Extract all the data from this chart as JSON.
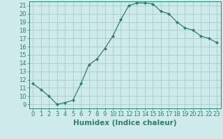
{
  "x": [
    0,
    1,
    2,
    3,
    4,
    5,
    6,
    7,
    8,
    9,
    10,
    11,
    12,
    13,
    14,
    15,
    16,
    17,
    18,
    19,
    20,
    21,
    22,
    23
  ],
  "y": [
    11.5,
    10.8,
    10.0,
    9.0,
    9.2,
    9.5,
    11.5,
    13.8,
    14.5,
    15.8,
    17.3,
    19.3,
    21.0,
    21.3,
    21.3,
    21.2,
    20.3,
    20.0,
    19.0,
    18.3,
    18.0,
    17.3,
    17.0,
    16.5
  ],
  "line_color": "#2e7d6e",
  "marker": "D",
  "marker_size": 2,
  "bg_color": "#ceeaea",
  "grid_color": "#aed0d0",
  "xlabel": "Humidex (Indice chaleur)",
  "ylim": [
    8.5,
    21.5
  ],
  "xlim": [
    -0.5,
    23.5
  ],
  "yticks": [
    9,
    10,
    11,
    12,
    13,
    14,
    15,
    16,
    17,
    18,
    19,
    20,
    21
  ],
  "xticks": [
    0,
    1,
    2,
    3,
    4,
    5,
    6,
    7,
    8,
    9,
    10,
    11,
    12,
    13,
    14,
    15,
    16,
    17,
    18,
    19,
    20,
    21,
    22,
    23
  ],
  "xtick_labels": [
    "0",
    "1",
    "2",
    "3",
    "4",
    "5",
    "6",
    "7",
    "8",
    "9",
    "10",
    "11",
    "12",
    "13",
    "14",
    "15",
    "16",
    "17",
    "18",
    "19",
    "20",
    "21",
    "22",
    "23"
  ],
  "tick_color": "#2e7d6e",
  "label_fontsize": 7.5,
  "tick_fontsize": 6
}
